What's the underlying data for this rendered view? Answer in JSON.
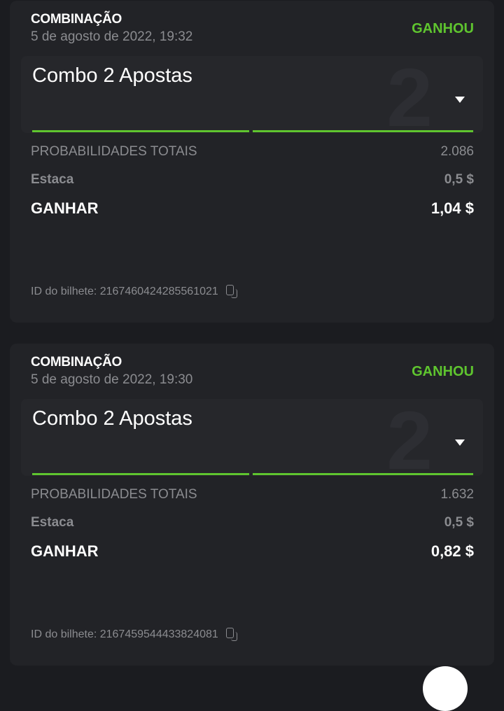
{
  "bets": [
    {
      "type": "COMBINAÇÃO",
      "date": "5 de agosto de 2022, 19:32",
      "status": "GANHOU",
      "combo_name": "Combo 2 Apostas",
      "combo_count": "2",
      "odds_label": "PROBABILIDADES TOTAIS",
      "odds_value": "2.086",
      "stake_label": "Estaca",
      "stake_value": "0,5 $",
      "win_label": "GANHAR",
      "win_value": "1,04 $",
      "ticket_id": "ID do bilhete: 2167460424285561021"
    },
    {
      "type": "COMBINAÇÃO",
      "date": "5 de agosto de 2022, 19:30",
      "status": "GANHOU",
      "combo_name": "Combo 2 Apostas",
      "combo_count": "2",
      "odds_label": "PROBABILIDADES TOTAIS",
      "odds_value": "1.632",
      "stake_label": "Estaca",
      "stake_value": "0,5 $",
      "win_label": "GANHAR",
      "win_value": "0,82 $",
      "ticket_id": "ID do bilhete: 2167459544433824081"
    }
  ],
  "colors": {
    "won": "#5fc52f",
    "card": "#222327",
    "background": "#1b1c20"
  },
  "icons": {
    "expand": "caret-down-icon",
    "copy": "copy-icon"
  }
}
